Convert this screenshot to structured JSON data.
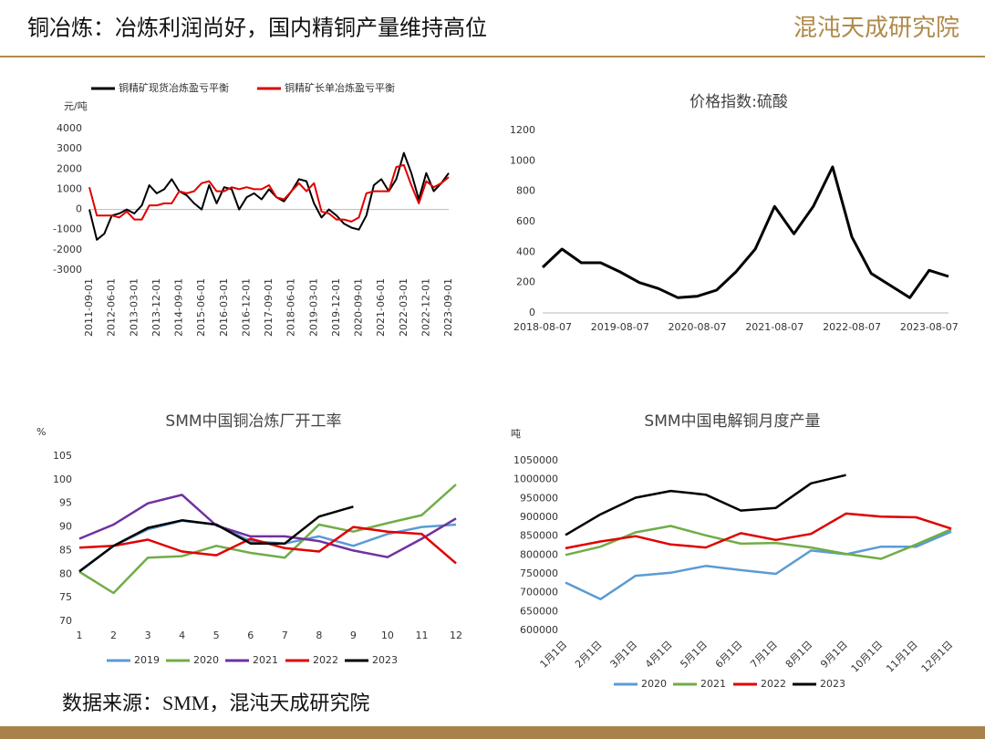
{
  "header": {
    "title": "铜冶炼：冶炼利润尚好，国内精铜产量维持高位",
    "logo": "混沌天成研究院"
  },
  "source": "数据来源：SMM，混沌天成研究院",
  "chart_data": [
    {
      "type": "line",
      "y_label": "元/吨",
      "legend": "top",
      "categories": [
        "2011-09-01",
        null,
        null,
        "2012-06-01",
        null,
        null,
        "2013-03-01",
        null,
        null,
        "2013-12-01",
        null,
        null,
        "2014-09-01",
        null,
        null,
        "2015-06-01",
        null,
        null,
        "2016-03-01",
        null,
        null,
        "2016-12-01",
        null,
        null,
        "2017-09-01",
        null,
        null,
        "2018-06-01",
        null,
        null,
        "2019-03-01",
        null,
        null,
        "2019-12-01",
        null,
        null,
        "2020-09-01",
        null,
        null,
        "2021-06-01",
        null,
        null,
        "2022-03-01",
        null,
        null,
        "2022-12-01",
        null,
        null,
        "2023-09-01"
      ],
      "series": [
        {
          "name": "铜精矿现货冶炼盈亏平衡",
          "color": "#000000",
          "values": [
            0,
            -1500,
            -1200,
            -300,
            -200,
            0,
            -200,
            200,
            1200,
            800,
            1000,
            1500,
            900,
            700,
            300,
            0,
            1200,
            300,
            1100,
            1000,
            0,
            600,
            800,
            500,
            1000,
            600,
            400,
            900,
            1500,
            1400,
            300,
            -400,
            0,
            -300,
            -700,
            -900,
            -1000,
            -300,
            1200,
            1500,
            900,
            1500,
            2800,
            1800,
            500,
            1800,
            900,
            1300,
            1800
          ]
        },
        {
          "name": "铜精矿长单冶炼盈亏平衡",
          "color": "#e00000",
          "values": [
            1100,
            -300,
            -300,
            -300,
            -400,
            -100,
            -500,
            -500,
            200,
            200,
            300,
            300,
            900,
            800,
            900,
            1300,
            1400,
            900,
            900,
            1100,
            1000,
            1100,
            1000,
            1000,
            1200,
            600,
            500,
            900,
            1300,
            900,
            1300,
            -100,
            -200,
            -500,
            -500,
            -600,
            -400,
            800,
            900,
            900,
            900,
            2100,
            2200,
            1200,
            300,
            1400,
            1100,
            1300,
            1600
          ]
        }
      ],
      "ylim": [
        -3000,
        4000
      ],
      "yticks": [
        -3000,
        -2000,
        -1000,
        0,
        1000,
        2000,
        3000,
        4000
      ]
    },
    {
      "type": "line",
      "title": "价格指数:硫酸",
      "categories": [
        "2018-08-07",
        null,
        null,
        null,
        "2019-08-07",
        null,
        null,
        null,
        "2020-08-07",
        null,
        null,
        null,
        "2021-08-07",
        null,
        null,
        null,
        "2022-08-07",
        null,
        null,
        null,
        "2023-08-07",
        null
      ],
      "series": [
        {
          "color": "#000000",
          "values": [
            300,
            420,
            330,
            330,
            270,
            200,
            160,
            100,
            110,
            150,
            270,
            420,
            700,
            520,
            700,
            960,
            500,
            260,
            180,
            100,
            280,
            240
          ]
        }
      ],
      "ylim": [
        0,
        1200
      ],
      "yticks": [
        0,
        200,
        400,
        600,
        800,
        1000,
        1200
      ]
    },
    {
      "type": "line",
      "title": "SMM中国铜冶炼厂开工率",
      "y_label": "%",
      "legend": "bottom",
      "categories": [
        "1",
        "2",
        "3",
        "4",
        "5",
        "6",
        "7",
        "8",
        "9",
        "10",
        "11",
        "12"
      ],
      "series": [
        {
          "name": "2019",
          "color": "#5b9bd5",
          "values": [
            80.5,
            86,
            89.5,
            91.3,
            90.5,
            87,
            86.5,
            88,
            86,
            88.5,
            90,
            90.5
          ]
        },
        {
          "name": "2020",
          "color": "#70ad47",
          "values": [
            80.5,
            76,
            83.5,
            83.8,
            86,
            84.5,
            83.5,
            90.5,
            89,
            90.8,
            92.5,
            99
          ]
        },
        {
          "name": "2021",
          "color": "#7030a0",
          "values": [
            87.5,
            90.5,
            95,
            96.8,
            90.3,
            88,
            88,
            87,
            85,
            83.6,
            87.5,
            91.8
          ]
        },
        {
          "name": "2022",
          "color": "#e00000",
          "values": [
            85.6,
            86,
            87.3,
            84.8,
            84,
            87.5,
            85.5,
            84.8,
            90,
            89,
            88.5,
            82.3
          ]
        },
        {
          "name": "2023",
          "color": "#000000",
          "values": [
            80.6,
            86,
            89.8,
            91.4,
            90.5,
            86.5,
            86.5,
            92.2,
            94.3,
            null,
            null,
            null
          ]
        }
      ],
      "ylim": [
        70,
        105
      ],
      "yticks": [
        70,
        75,
        80,
        85,
        90,
        95,
        100,
        105
      ]
    },
    {
      "type": "line",
      "title": "SMM中国电解铜月度产量",
      "y_label": "吨",
      "legend": "bottom",
      "categories": [
        "1月1日",
        "2月1日",
        "3月1日",
        "4月1日",
        "5月1日",
        "6月1日",
        "7月1日",
        "8月1日",
        "9月1日",
        "10月1日",
        "11月1日",
        "12月1日"
      ],
      "series": [
        {
          "name": "2020",
          "color": "#5b9bd5",
          "values": [
            727000,
            683000,
            745000,
            753000,
            771000,
            760000,
            750000,
            812000,
            802000,
            822000,
            822000,
            862000
          ]
        },
        {
          "name": "2021",
          "color": "#70ad47",
          "values": [
            800000,
            822000,
            860000,
            877000,
            852000,
            830000,
            832000,
            820000,
            803000,
            790000,
            828000,
            868000
          ]
        },
        {
          "name": "2022",
          "color": "#e00000",
          "values": [
            818000,
            836000,
            850000,
            828000,
            820000,
            858000,
            840000,
            856000,
            910000,
            902000,
            900000,
            870000
          ]
        },
        {
          "name": "2023",
          "color": "#000000",
          "values": [
            853000,
            908000,
            952000,
            970000,
            960000,
            918000,
            925000,
            990000,
            1012000,
            null,
            null,
            null
          ]
        }
      ],
      "ylim": [
        600000,
        1050000
      ],
      "yticks": [
        600000,
        650000,
        700000,
        750000,
        800000,
        850000,
        900000,
        950000,
        1000000,
        1050000
      ]
    }
  ]
}
